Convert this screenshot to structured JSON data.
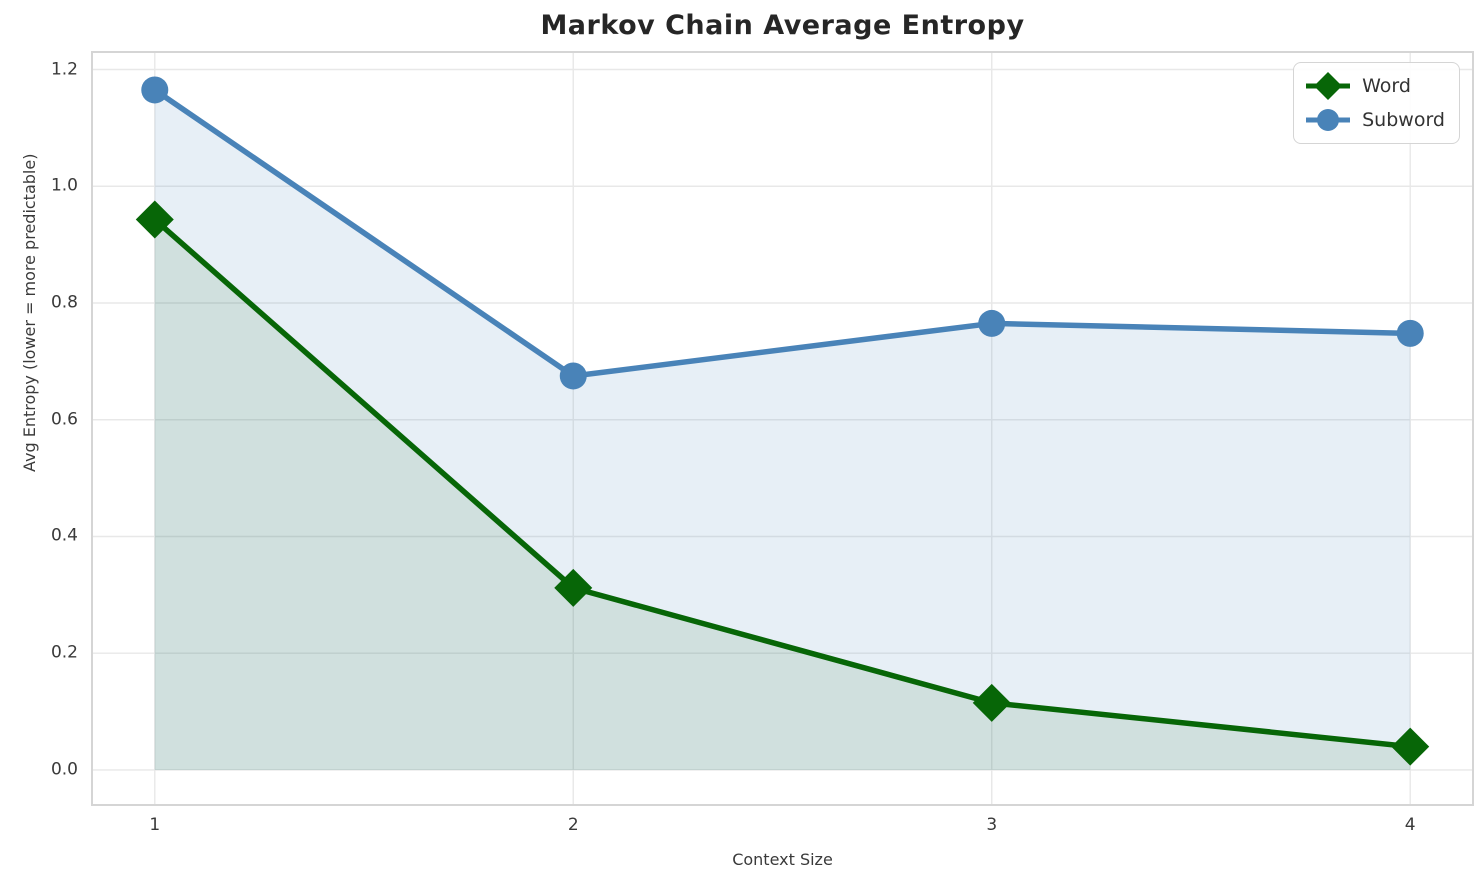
{
  "chart_data": {
    "type": "line",
    "title": "Markov Chain Average Entropy",
    "xlabel": "Context Size",
    "ylabel": "Avg Entropy (lower = more predictable)",
    "x": [
      1,
      2,
      3,
      4
    ],
    "series": [
      {
        "name": "Word",
        "marker": "diamond",
        "color": "#076607",
        "values": [
          0.943,
          0.312,
          0.115,
          0.04
        ]
      },
      {
        "name": "Subword",
        "marker": "circle",
        "color": "#4983b8",
        "values": [
          1.165,
          0.675,
          0.765,
          0.748
        ]
      }
    ],
    "xticks": [
      "1",
      "2",
      "3",
      "4"
    ],
    "yticks": [
      "0.0",
      "0.2",
      "0.4",
      "0.6",
      "0.8",
      "1.0",
      "1.2"
    ],
    "xlim": [
      0.85,
      4.15
    ],
    "ylim": [
      -0.06,
      1.23
    ],
    "grid": true,
    "legend_position": "upper right",
    "area_fill": true,
    "fill_baseline": 0.0
  }
}
